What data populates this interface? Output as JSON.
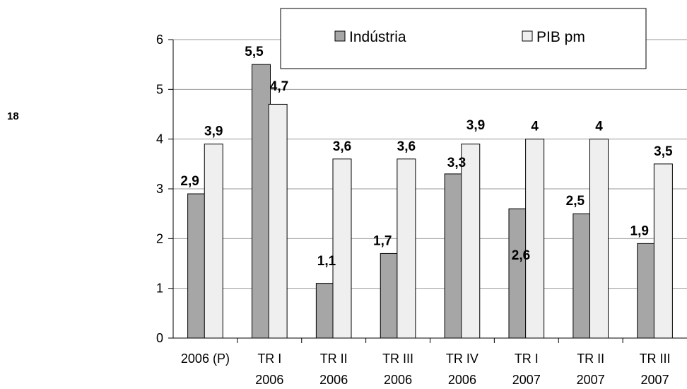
{
  "page": {
    "number": "18"
  },
  "chart_data": {
    "type": "bar",
    "title": "",
    "xlabel": "",
    "ylabel": "",
    "ylim": [
      0,
      6
    ],
    "yticks": [
      "0",
      "1",
      "2",
      "3",
      "4",
      "5",
      "6"
    ],
    "grid": true,
    "legend": "top-right",
    "categories": [
      [
        "2006 (P)",
        ""
      ],
      [
        "TR I",
        "2006"
      ],
      [
        "TR II",
        "2006"
      ],
      [
        "TR III",
        "2006"
      ],
      [
        "TR IV",
        "2006"
      ],
      [
        "TR I",
        "2007"
      ],
      [
        "TR II",
        "2007"
      ],
      [
        "TR III",
        "2007"
      ]
    ],
    "series": [
      {
        "name": "Indústria",
        "color": "#a6a6a6",
        "values": [
          2.9,
          5.5,
          1.1,
          1.7,
          3.3,
          2.6,
          2.5,
          1.9
        ],
        "labels": [
          "2,9",
          "5,5",
          "1,1",
          "1,7",
          "3,3",
          "2,6",
          "2,5",
          "1,9"
        ]
      },
      {
        "name": "PIB pm",
        "color": "#efefef",
        "values": [
          3.9,
          4.7,
          3.6,
          3.6,
          3.9,
          4.0,
          4.0,
          3.5
        ],
        "labels": [
          "3,9",
          "4,7",
          "3,6",
          "3,6",
          "3,9",
          "4",
          "4",
          "3,5"
        ]
      }
    ]
  }
}
